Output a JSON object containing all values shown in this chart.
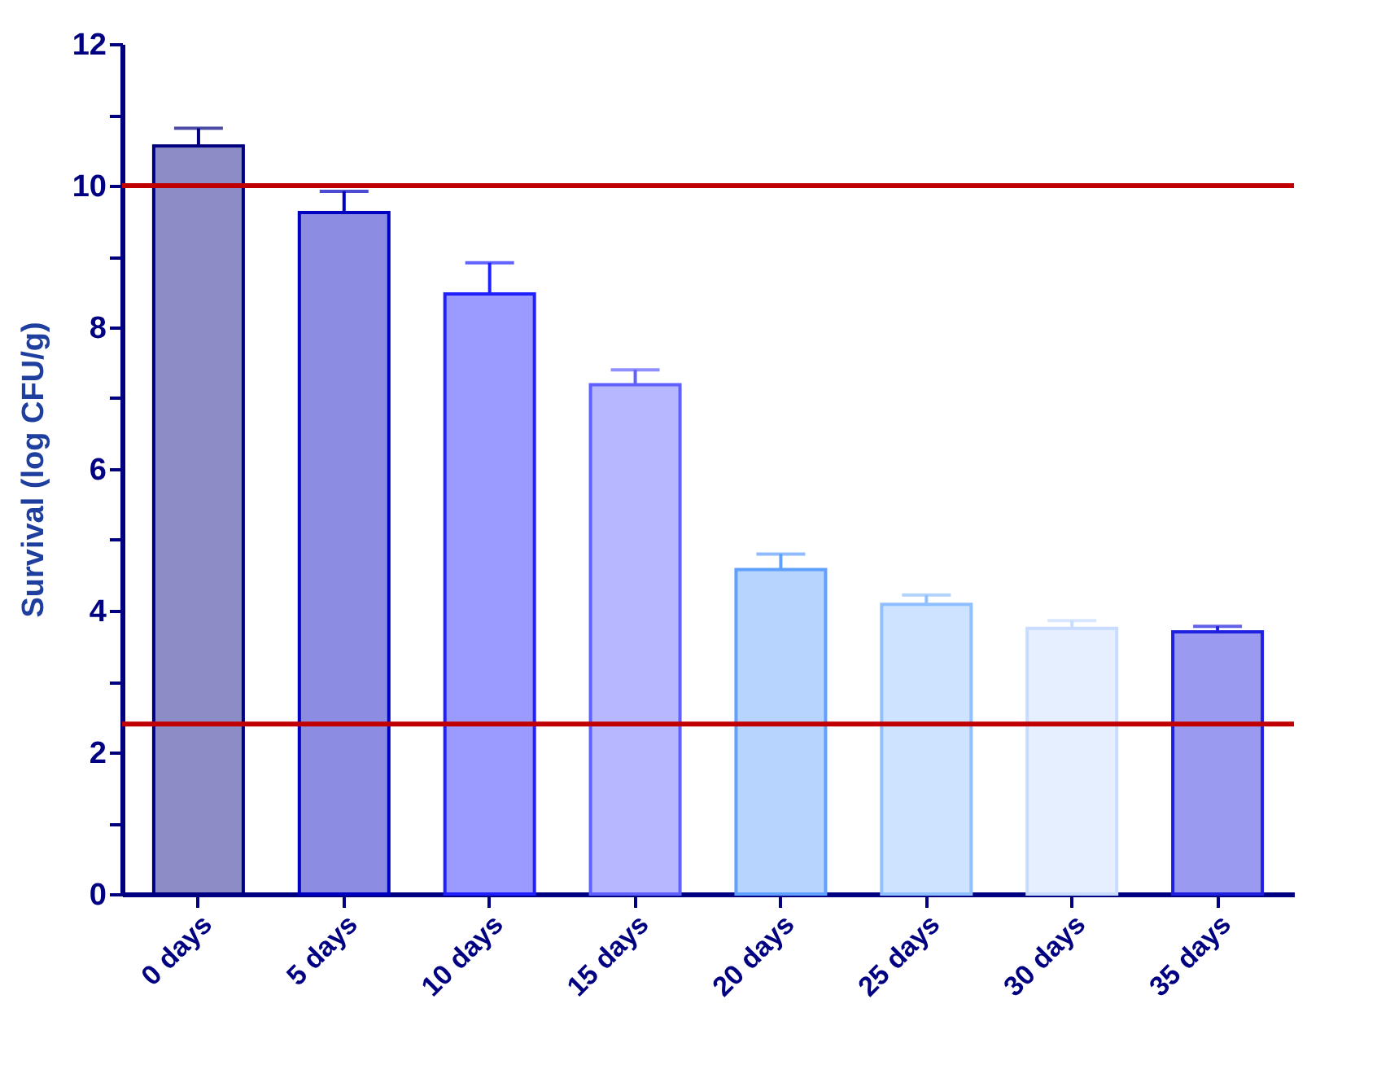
{
  "chart_data": {
    "type": "bar",
    "ylabel": "Survival (log CFU/g)",
    "categories": [
      "0 days",
      "5 days",
      "10 days",
      "15 days",
      "20 days",
      "25 days",
      "30 days",
      "35 days"
    ],
    "values": [
      10.56,
      9.62,
      8.47,
      7.19,
      4.58,
      4.09,
      3.75,
      3.7
    ],
    "errors": [
      [
        10.56,
        10.81
      ],
      [
        9.62,
        9.92
      ],
      [
        8.47,
        8.91
      ],
      [
        7.19,
        7.4
      ],
      [
        4.58,
        4.8
      ],
      [
        4.09,
        4.22
      ],
      [
        3.75,
        3.86
      ],
      [
        3.7,
        3.78
      ]
    ],
    "colors": [
      "#000080",
      "#0000c0",
      "#2020ff",
      "#6060ff",
      "#60a0ff",
      "#90c0ff",
      "#c8dcff",
      "#2020e0"
    ],
    "ylim": [
      0,
      12
    ],
    "yticks": [
      0,
      {
        "value": 1,
        "label": null
      },
      2,
      {
        "value": 3,
        "label": null
      },
      4,
      {
        "value": 5,
        "label": null
      },
      6,
      {
        "value": 7,
        "label": null
      },
      8,
      {
        "value": 9,
        "label": null
      },
      10,
      {
        "value": 11,
        "label": null
      },
      12
    ],
    "ref_lines": [
      {
        "axis": "y",
        "value": 10,
        "color": "#c00000"
      },
      {
        "axis": "y",
        "value": 2.4,
        "color": "#c00000"
      }
    ],
    "grid": false,
    "legend": false
  }
}
